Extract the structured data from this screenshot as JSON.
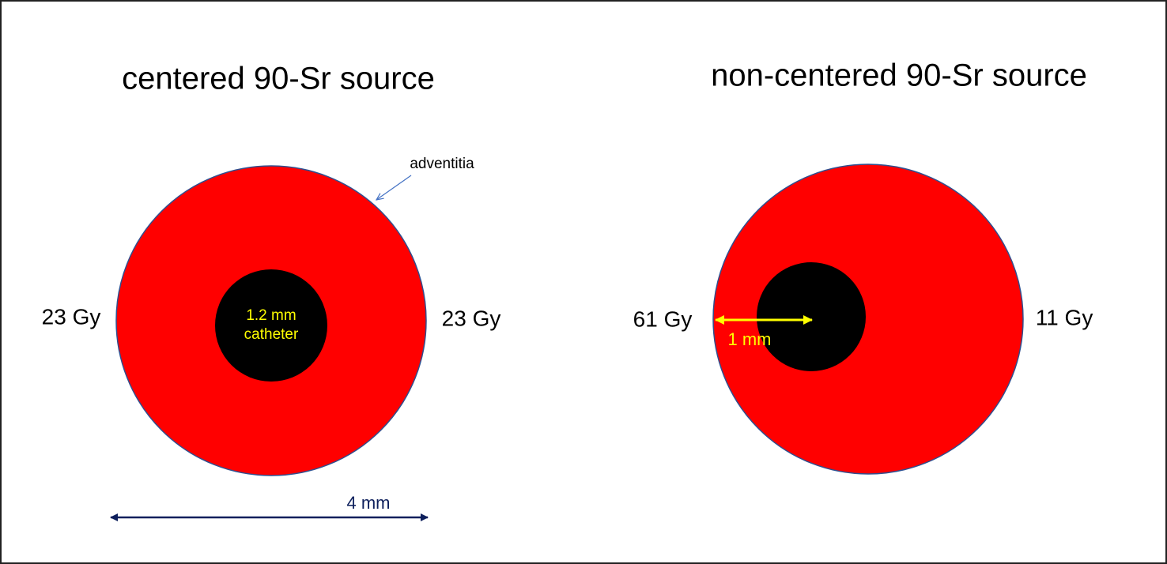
{
  "left": {
    "title": "centered 90-Sr source",
    "adventitia_label": "adventitia",
    "dose_left": "23 Gy",
    "dose_right": "23 Gy",
    "catheter_lines": [
      "1.2 mm",
      "catheter"
    ],
    "scale_label": "4 mm"
  },
  "right": {
    "title": "non-centered 90-Sr source",
    "dose_left": "61 Gy",
    "dose_right": "11 Gy",
    "offset_label": "1 mm"
  }
}
